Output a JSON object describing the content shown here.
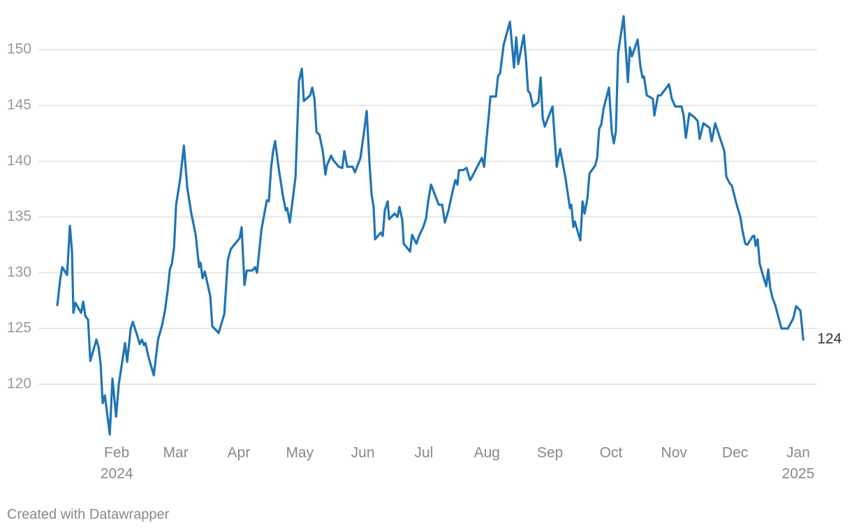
{
  "chart_data": {
    "type": "line",
    "x": [
      1.8,
      3.2,
      4.2,
      6.6,
      8.0,
      9.0,
      9.7,
      10.7,
      13.5,
      14.5,
      15.6,
      16.9,
      18.0,
      21.0,
      22.1,
      23.1,
      24.1,
      25.2,
      27.6,
      28.9,
      30.7,
      32.0,
      35.1,
      36.1,
      37.9,
      38.9,
      41.0,
      42.3,
      43.4,
      44.4,
      45.1,
      46.4,
      49.2,
      51.3,
      53.3,
      54.7,
      56.1,
      57.1,
      58.1,
      59.2,
      60.2,
      62.2,
      64.0,
      65.7,
      67.7,
      69.8,
      71.5,
      72.2,
      73.2,
      74.3,
      77.0,
      78.0,
      81.1,
      83.9,
      85.6,
      87.0,
      91.4,
      92.4,
      93.8,
      94.9,
      97.6,
      99.0,
      100.0,
      102.1,
      104.8,
      105.8,
      106.9,
      107.9,
      108.9,
      110.6,
      112.7,
      114.1,
      114.8,
      116.1,
      118.9,
      120.6,
      122.0,
      123.0,
      126.1,
      127.1,
      128.2,
      129.2,
      130.6,
      132.3,
      133.6,
      134.3,
      136.4,
      137.4,
      140.2,
      141.9,
      142.9,
      144.3,
      147.0,
      148.1,
      150.8,
      152.5,
      153.9,
      155.3,
      156.3,
      157.3,
      158.0,
      160.8,
      161.8,
      162.8,
      164.2,
      164.9,
      167.6,
      169.0,
      170.0,
      171.4,
      172.1,
      175.2,
      176.2,
      178.3,
      179.6,
      181.7,
      183.1,
      184.1,
      185.5,
      189.3,
      191.0,
      192.3,
      194.1,
      196.5,
      197.5,
      198.5,
      199.2,
      201.3,
      203.0,
      204.7,
      205.7,
      207.4,
      210.5,
      211.6,
      212.9,
      214.0,
      214.7,
      217.4,
      218.4,
      219.5,
      221.2,
      224.3,
      226.3,
      227.4,
      228.4,
      231.1,
      232.2,
      233.2,
      234.2,
      235.6,
      238.3,
      239.4,
      240.4,
      241.4,
      245.2,
      247.3,
      249.0,
      251.7,
      253.8,
      254.5,
      255.5,
      256.2,
      258.9,
      260.0,
      261.0,
      262.4,
      263.4,
      266.2,
      267.2,
      268.2,
      269.2,
      270.3,
      273.0,
      274.4,
      275.4,
      276.4,
      277.5,
      280.2,
      282.3,
      283.3,
      284.3,
      287.1,
      288.5,
      289.5,
      290.2,
      291.6,
      294.6,
      295.3,
      297.1,
      298.4,
      300.5,
      302.5,
      303.9,
      305.6,
      308.7,
      309.7,
      310.8,
      312.5,
      315.2,
      316.6,
      317.6,
      319.4,
      322.4,
      323.5,
      325.2,
      327.9,
      329.7,
      330.7,
      332.4,
      333.4,
      335.8,
      337.6,
      338.6,
      340.0,
      341.0,
      343.7,
      344.4,
      345.1,
      346.1,
      347.1,
      348.5,
      350.3,
      351.3,
      352.3,
      353.3,
      354.7,
      357.8,
      360.9,
      363.6,
      365.0,
      367.1,
      368.5
    ],
    "series": [
      {
        "color": "#1f74b4",
        "values": [
          127.1,
          129.4,
          130.5,
          129.8,
          134.2,
          131.9,
          126.4,
          127.3,
          126.4,
          127.4,
          126.1,
          125.8,
          122.1,
          124,
          123.3,
          121.8,
          118.3,
          119,
          115.5,
          120.5,
          117.1,
          120,
          123.7,
          122,
          125,
          125.6,
          124.4,
          123.6,
          124,
          123.5,
          123.7,
          122.6,
          120.8,
          124,
          125.3,
          126.6,
          128.5,
          130.3,
          130.8,
          132.3,
          136.1,
          138.4,
          141.4,
          137.6,
          135.3,
          133.4,
          130.5,
          130.9,
          129.5,
          130.1,
          127.9,
          125.2,
          124.6,
          126.3,
          131.1,
          132.1,
          133.1,
          134.1,
          128.9,
          130.2,
          130.2,
          130.5,
          130,
          133.8,
          136.5,
          136.4,
          139.4,
          140.9,
          141.8,
          139.4,
          136.9,
          135.6,
          135.8,
          134.5,
          138.6,
          147.2,
          148.3,
          145.4,
          145.9,
          146.6,
          145.6,
          142.6,
          142.4,
          140.9,
          138.8,
          139.6,
          140.5,
          140.1,
          139.5,
          139.4,
          140.9,
          139.5,
          139.5,
          139,
          140.3,
          142.5,
          144.5,
          139.7,
          137,
          135.9,
          133,
          133.6,
          133.3,
          135.6,
          136.4,
          134.8,
          135.3,
          135,
          135.9,
          134.7,
          132.6,
          131.9,
          133.4,
          132.6,
          133.3,
          134.1,
          134.9,
          136.4,
          137.9,
          136.1,
          136.1,
          134.5,
          135.6,
          137.6,
          138.3,
          137.9,
          139.2,
          139.2,
          139.4,
          138.3,
          138.6,
          139.2,
          140.3,
          139.5,
          142.2,
          144.3,
          145.8,
          145.8,
          147.6,
          147.9,
          150.4,
          152.5,
          148.4,
          151.1,
          148.7,
          151.3,
          149.1,
          146.3,
          146.1,
          144.9,
          145.3,
          147.5,
          143.9,
          143.1,
          144.9,
          139.5,
          141.1,
          138.4,
          135.8,
          136.1,
          134.1,
          134.6,
          132.9,
          136.4,
          135.3,
          136.7,
          138.9,
          139.6,
          140.3,
          142.9,
          143.3,
          144.7,
          146.6,
          142.6,
          141.6,
          142.7,
          149.7,
          153,
          147.1,
          150.2,
          149.4,
          150.9,
          148.4,
          147.5,
          147.6,
          145.9,
          145.6,
          144.1,
          145.9,
          145.9,
          146.4,
          146.9,
          145.6,
          144.9,
          144.9,
          144.1,
          142.1,
          144.3,
          143.9,
          143.6,
          142,
          143.4,
          143,
          141.8,
          143.4,
          141.9,
          140.9,
          138.6,
          138,
          137.8,
          136.1,
          135,
          133.8,
          132.6,
          132.5,
          133.3,
          133.3,
          132.4,
          133,
          130.8,
          129.9,
          128.8,
          130.3,
          128.6,
          127.8,
          127.1,
          125,
          125,
          125.9,
          127,
          126.6,
          124
        ]
      }
    ],
    "xlim": [
      -7.5,
      375.3
    ],
    "xticks": [
      {
        "value": 31,
        "label": "Feb",
        "year": "2024"
      },
      {
        "value": 60,
        "label": "Mar"
      },
      {
        "value": 91,
        "label": "Apr"
      },
      {
        "value": 121,
        "label": "May"
      },
      {
        "value": 152,
        "label": "Jun"
      },
      {
        "value": 182,
        "label": "Jul"
      },
      {
        "value": 213,
        "label": "Aug"
      },
      {
        "value": 244,
        "label": "Sep"
      },
      {
        "value": 274,
        "label": "Oct"
      },
      {
        "value": 305,
        "label": "Nov"
      },
      {
        "value": 335,
        "label": "Dec"
      },
      {
        "value": 366,
        "label": "Jan",
        "year": "2025"
      }
    ],
    "ylim": [
      115.3,
      153.2
    ],
    "yticks": [
      120,
      125,
      130,
      135,
      140,
      145,
      150
    ],
    "grid": true,
    "credit": "Created with Datawrapper"
  }
}
